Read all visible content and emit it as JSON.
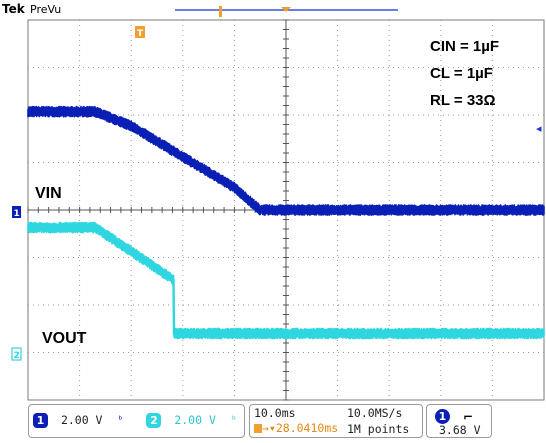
{
  "header": {
    "brand": "Tek",
    "mode": "PreVu",
    "trigger_marker": "T"
  },
  "chart_data": {
    "type": "line",
    "title": "",
    "xlabel": "",
    "ylabel": "",
    "x_unit": "ms",
    "x_scale_per_div": "10.0ms",
    "x_divisions": 10,
    "y_divisions": 8,
    "xlim": [
      0,
      100
    ],
    "ylim": [
      -4,
      4
    ],
    "grid": true,
    "trigger_position_ms": 50,
    "series": [
      {
        "name": "VIN",
        "channel": "1",
        "color": "#0a1fb5",
        "volts_per_div": "2.00 V",
        "ground_level_div": 0,
        "x": [
          0,
          13,
          20,
          40,
          45,
          100
        ],
        "y": [
          2.07,
          2.07,
          1.77,
          0.47,
          0.0,
          0.0
        ]
      },
      {
        "name": "VOUT",
        "channel": "2",
        "color": "#2ed6e0",
        "volts_per_div": "2.00 V",
        "ground_level_div": -2.6,
        "x": [
          0,
          13,
          20,
          28.2,
          28.3,
          100
        ],
        "y": [
          -0.37,
          -0.37,
          -0.87,
          -1.47,
          -2.6,
          -2.6
        ]
      }
    ],
    "annotations": [
      "CIN = 1µF",
      "CL = 1µF",
      "RL = 33Ω"
    ]
  },
  "colors": {
    "ch1": "#0a1fb5",
    "ch2": "#2ed6e0",
    "trigger": "#f0a030",
    "grid": "#9a9a9a"
  },
  "status": {
    "ch1_number": "1",
    "ch1_scale": "2.00 V",
    "ch1_bw_icon": "bandwidth-limit-icon",
    "ch2_number": "2",
    "ch2_scale": "2.00 V",
    "ch2_bw_icon": "bandwidth-limit-icon",
    "timebase": "10.0ms",
    "sample_rate": "10.0MS/s",
    "trigger_offset": "28.0410ms",
    "record_length": "1M points",
    "trigger_channel": "1",
    "trigger_slope_icon": "falling-edge-icon",
    "trigger_level": "3.68 V"
  }
}
